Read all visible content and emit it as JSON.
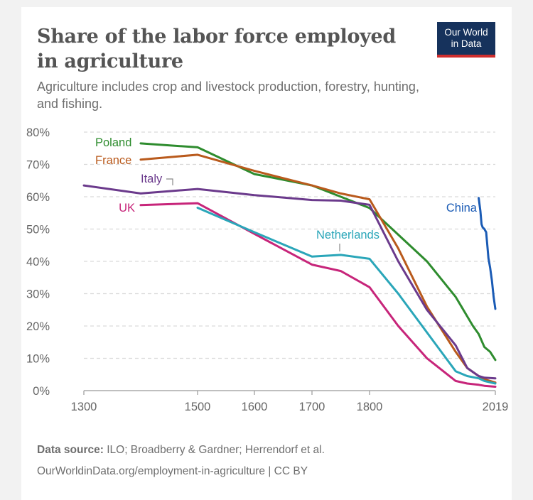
{
  "header": {
    "title_line1": "Share of the labor force employed",
    "title_line2": "in agriculture",
    "subtitle_line1": "Agriculture includes crop and livestock production, forestry, hunting,",
    "subtitle_line2": "and fishing.",
    "logo_line1": "Our World",
    "logo_line2": "in Data",
    "logo_color": "#16325c",
    "logo_accent": "#cf2d2d"
  },
  "footer": {
    "source_label": "Data source:",
    "source_text": " ILO; Broadberry & Gardner; Herrendorf et al.",
    "link_text": "OurWorldinData.org/employment-in-agriculture | CC BY"
  },
  "chart_data": {
    "type": "line",
    "title": "Share of the labor force employed in agriculture",
    "subtitle": "Agriculture includes crop and livestock production, forestry, hunting, and fishing.",
    "x_ticks": [
      1300,
      1500,
      1600,
      1700,
      1800,
      2019
    ],
    "x_tick_labels": [
      "1300",
      "1500",
      "1600",
      "1700",
      "1800",
      "2019"
    ],
    "y_ticks": [
      0,
      10,
      20,
      30,
      40,
      50,
      60,
      70,
      80
    ],
    "y_tick_labels": [
      "0%",
      "10%",
      "20%",
      "30%",
      "40%",
      "50%",
      "60%",
      "70%",
      "80%"
    ],
    "xlim": [
      1300,
      2019
    ],
    "ylim": [
      0,
      80
    ],
    "grid": "horizontal dashed",
    "legend": "inline labels",
    "series": [
      {
        "name": "Poland",
        "color": "#2e8c2e",
        "x": [
          1400,
          1500,
          1600,
          1700,
          1750,
          1800,
          1900,
          1950,
          1960,
          1970,
          1980,
          1990,
          2000,
          2010,
          2019
        ],
        "y": [
          76.5,
          75.3,
          67,
          63.5,
          60,
          56.5,
          40,
          29,
          26,
          23,
          20,
          17.5,
          13.5,
          12,
          9.5
        ]
      },
      {
        "name": "France",
        "color": "#b95a1c",
        "x": [
          1400,
          1500,
          1600,
          1700,
          1750,
          1800,
          1850,
          1900,
          1950,
          1970,
          1990,
          2000,
          2019
        ],
        "y": [
          71.5,
          73,
          68,
          63.5,
          61,
          59.2,
          44,
          26,
          12,
          7,
          4.5,
          3.5,
          2.5
        ]
      },
      {
        "name": "Italy",
        "color": "#6b3a8c",
        "x": [
          1300,
          1400,
          1500,
          1600,
          1700,
          1750,
          1800,
          1850,
          1900,
          1950,
          1970,
          1990,
          2000,
          2019
        ],
        "y": [
          63.5,
          61,
          62.4,
          60.5,
          59,
          58.8,
          57.5,
          40,
          25,
          14,
          7,
          4.5,
          4,
          3.8
        ]
      },
      {
        "name": "UK",
        "color": "#c7257a",
        "x": [
          1400,
          1500,
          1600,
          1700,
          1750,
          1800,
          1850,
          1900,
          1950,
          1970,
          1990,
          2000,
          2019
        ],
        "y": [
          57.4,
          58,
          48.5,
          39,
          37,
          32,
          20,
          10,
          3,
          2.2,
          1.8,
          1.5,
          1.2
        ]
      },
      {
        "name": "Netherlands",
        "color": "#2aa6b9",
        "x": [
          1500,
          1600,
          1700,
          1750,
          1800,
          1850,
          1900,
          1950,
          1970,
          1990,
          2000,
          2019
        ],
        "y": [
          56.6,
          49,
          41.5,
          42,
          40.8,
          30,
          18,
          6,
          4.5,
          3.8,
          3,
          2.2
        ]
      },
      {
        "name": "China",
        "color": "#1a5bb5",
        "x": [
          1990,
          1993,
          1995,
          1997,
          2000,
          2003,
          2005,
          2007,
          2010,
          2013,
          2016,
          2019
        ],
        "y": [
          59.6,
          55.5,
          51.5,
          50.5,
          50,
          49,
          45,
          41,
          38,
          34,
          29,
          25.3
        ]
      }
    ]
  }
}
